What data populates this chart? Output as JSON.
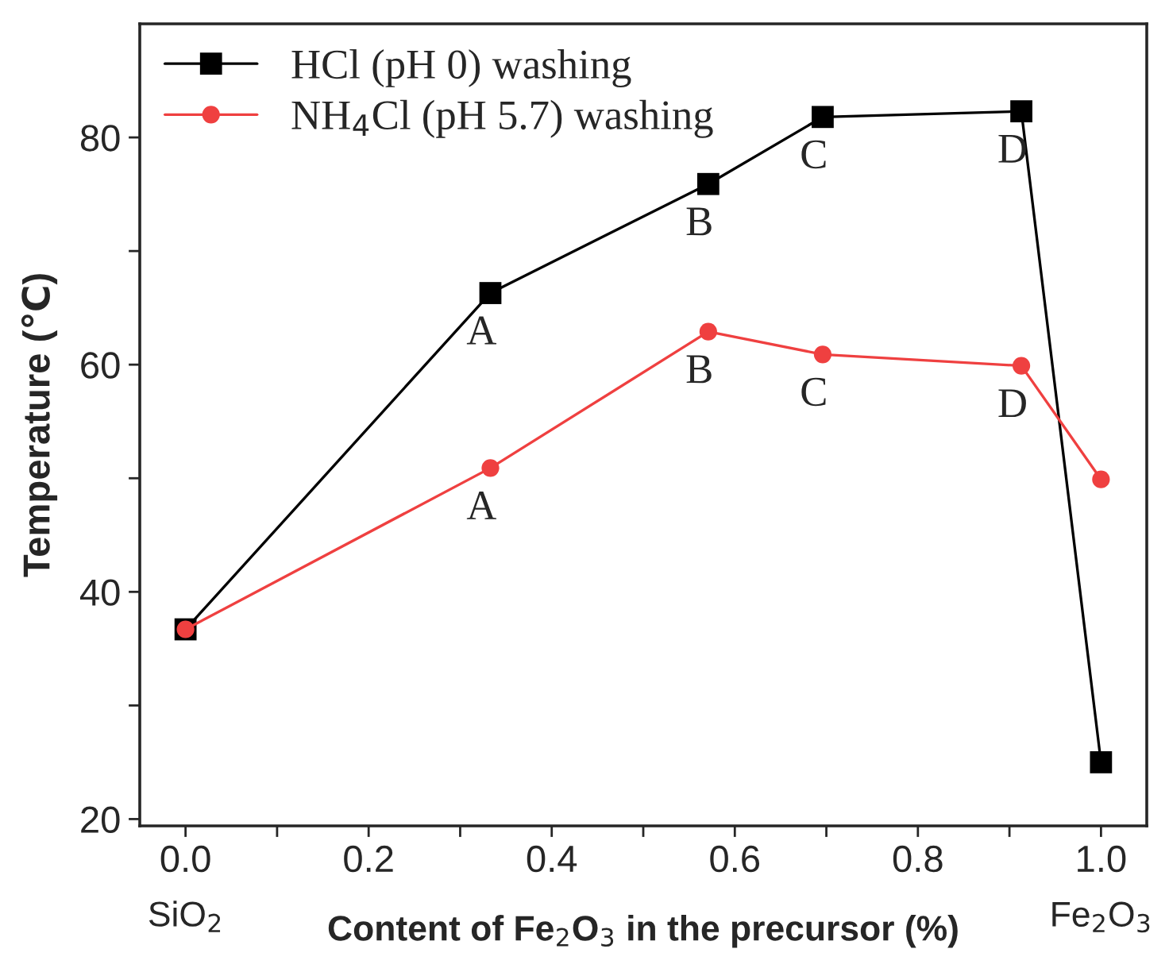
{
  "chart_data": {
    "type": "line",
    "xlabel": "Content of Fe$_{2}$O$_{3}$ in the precursor (%)",
    "ylabel": "Temperature (℃)",
    "xlim": [
      -0.05,
      1.05
    ],
    "ylim": [
      19.4,
      90
    ],
    "xticks": [
      {
        "value": 0,
        "label": "0.0"
      },
      {
        "value": 0.1,
        "label": null
      },
      0.2,
      {
        "value": 0.3,
        "label": null
      },
      0.4,
      {
        "value": 0.5,
        "label": null
      },
      0.6,
      {
        "value": 0.7,
        "label": null
      },
      0.8,
      {
        "value": 0.9,
        "label": null
      },
      {
        "value": 1,
        "label": "1.0"
      }
    ],
    "yticks": [
      20,
      {
        "value": 30,
        "label": null
      },
      40,
      {
        "value": 50,
        "label": null
      },
      60,
      {
        "value": 70,
        "label": null
      },
      80
    ],
    "grid": false,
    "legend": "top left",
    "series": [
      {
        "name": "HCl (pH 0) washing",
        "color": "#000000",
        "marker": "square",
        "x": [
          0,
          0.333,
          0.571,
          0.696,
          0.913,
          1.0
        ],
        "values": [
          36.7,
          66.3,
          75.9,
          81.8,
          82.3,
          25.0
        ]
      },
      {
        "name": "NH$_{4}$Cl (pH 5.7) washing",
        "color": "#ef4040",
        "marker": "circle",
        "x": [
          0,
          0.333,
          0.571,
          0.696,
          0.913,
          1.0
        ],
        "values": [
          36.7,
          50.9,
          62.9,
          60.9,
          59.9,
          49.9
        ]
      }
    ],
    "annotations": [
      {
        "text": "A",
        "x": 0.333,
        "y": 66.3
      },
      {
        "text": "B",
        "x": 0.571,
        "y": 75.9
      },
      {
        "text": "C",
        "x": 0.696,
        "y": 81.8
      },
      {
        "text": "D",
        "x": 0.913,
        "y": 82.3
      },
      {
        "text": "A",
        "x": 0.333,
        "y": 50.9
      },
      {
        "text": "B",
        "x": 0.571,
        "y": 62.9
      },
      {
        "text": "C",
        "x": 0.696,
        "y": 60.9
      },
      {
        "text": "D",
        "x": 0.913,
        "y": 59.9
      },
      "SiO$_{2}$",
      "Fe$_{2}$O$_{3}$"
    ]
  }
}
